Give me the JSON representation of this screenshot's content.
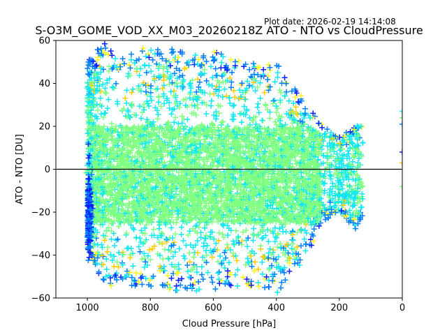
{
  "header": {
    "plot_date": "Plot date: 2026-02-19 14:14:08"
  },
  "chart_data": {
    "type": "scatter",
    "title": "S-O3M_GOME_VOD_XX_M03_20260218Z ATO - NTO vs CloudPressure",
    "xlabel": "Cloud Pressure [hPa]",
    "ylabel": "ATO - NTO [DU]",
    "xlim": [
      1100,
      0
    ],
    "ylim": [
      -60,
      60
    ],
    "x_ticks": [
      1000,
      800,
      600,
      400,
      200,
      0
    ],
    "y_ticks": [
      -60,
      -40,
      -20,
      0,
      20,
      40,
      60
    ],
    "reference_line_y": 0,
    "marker": "plus",
    "colormap": [
      "#0a1eff",
      "#0080ff",
      "#12e8f0",
      "#80ff80",
      "#f7f31c",
      "#ffcc00"
    ],
    "density_envelope": [
      {
        "x": 1000,
        "y_min": -35,
        "y_max": 50
      },
      {
        "x": 950,
        "y_min": -55,
        "y_max": 60
      },
      {
        "x": 900,
        "y_min": -54,
        "y_max": 52
      },
      {
        "x": 800,
        "y_min": -55,
        "y_max": 58
      },
      {
        "x": 700,
        "y_min": -57,
        "y_max": 55
      },
      {
        "x": 600,
        "y_min": -57,
        "y_max": 55
      },
      {
        "x": 500,
        "y_min": -54,
        "y_max": 50
      },
      {
        "x": 400,
        "y_min": -58,
        "y_max": 50
      },
      {
        "x": 300,
        "y_min": -40,
        "y_max": 30
      },
      {
        "x": 250,
        "y_min": -25,
        "y_max": 20
      },
      {
        "x": 200,
        "y_min": -20,
        "y_max": 15
      },
      {
        "x": 150,
        "y_min": -28,
        "y_max": 20
      },
      {
        "x": 0,
        "y_min": -8,
        "y_max": 28
      }
    ],
    "core_band": {
      "y_min": -25,
      "y_max": 20
    }
  }
}
